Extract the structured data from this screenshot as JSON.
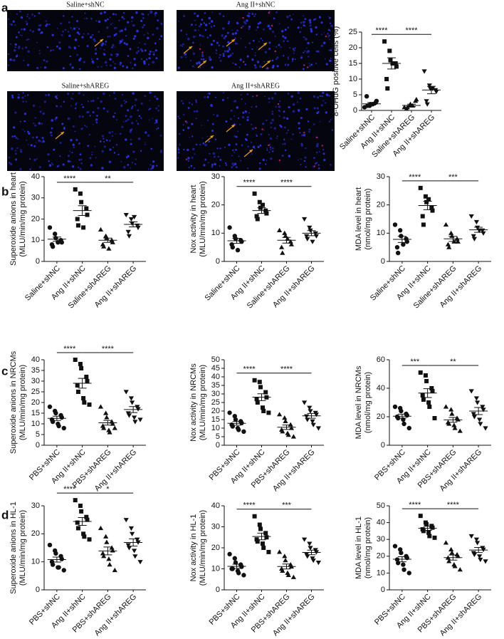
{
  "panel_labels": [
    "a",
    "b",
    "c",
    "d"
  ],
  "images": [
    {
      "label": "Saline+shNC"
    },
    {
      "label": "Ang II+shNC"
    },
    {
      "label": "Saline+shAREG"
    },
    {
      "label": "Ang II+shAREG"
    }
  ],
  "chart_data": [
    {
      "type": "dot",
      "ylabel": [
        "8-OHdG positive cells (%)"
      ],
      "categories": [
        "Saline+shNC",
        "Ang II+shNC",
        "Saline+shAREG",
        "Ang II+shAREG"
      ],
      "ylim": [
        0,
        25
      ],
      "yticks": [
        0,
        5,
        10,
        15,
        20,
        25
      ],
      "groups": [
        {
          "marker": "circle",
          "points": [
            1,
            1.5,
            2,
            2.5,
            3,
            4.5,
            1.5,
            2
          ],
          "mean": 2.1,
          "sem": 0.4
        },
        {
          "marker": "square",
          "points": [
            22,
            19,
            16,
            15,
            14,
            10,
            7,
            15
          ],
          "mean": 15,
          "sem": 1.8
        },
        {
          "marker": "triangle",
          "points": [
            1,
            1.5,
            2,
            3,
            3.5,
            0.5,
            1,
            1.5
          ],
          "mean": 1.6,
          "sem": 0.4
        },
        {
          "marker": "triangle-down",
          "points": [
            12.5,
            8,
            7,
            6.5,
            6,
            3,
            2,
            7
          ],
          "mean": 6.5,
          "sem": 1.2
        }
      ],
      "significance": [
        {
          "from": 0,
          "to": 1,
          "label": "****"
        },
        {
          "from": 1,
          "to": 3,
          "label": "****"
        }
      ]
    },
    {
      "type": "dot",
      "ylabel": [
        "Superoxide anions in heart",
        "(MLU/min/mg protein)"
      ],
      "categories": [
        "Saline+shNC",
        "Ang II+shNC",
        "Saline+shAREG",
        "Ang II+shAREG"
      ],
      "ylim": [
        0,
        40
      ],
      "yticks": [
        0,
        10,
        20,
        30,
        40
      ],
      "groups": [
        {
          "marker": "circle",
          "points": [
            16,
            13,
            11,
            10,
            9,
            8,
            7,
            9
          ],
          "mean": 10.5,
          "sem": 1
        },
        {
          "marker": "square",
          "points": [
            34,
            32,
            28,
            25,
            22,
            20,
            17,
            16
          ],
          "mean": 24,
          "sem": 2.3
        },
        {
          "marker": "triangle",
          "points": [
            15,
            12,
            11,
            10,
            9,
            8,
            7,
            6
          ],
          "mean": 10,
          "sem": 1
        },
        {
          "marker": "triangle-down",
          "points": [
            22,
            20,
            18,
            17,
            16,
            14,
            12,
            21
          ],
          "mean": 17.5,
          "sem": 1.2
        }
      ],
      "significance": [
        {
          "from": 0,
          "to": 1,
          "label": "****"
        },
        {
          "from": 1,
          "to": 3,
          "label": "**"
        }
      ]
    },
    {
      "type": "dot",
      "ylabel": [
        "Nox activity in heart",
        "(MLU/min/mg protein)"
      ],
      "categories": [
        "Saline+shNC",
        "Ang II+shNC",
        "Saline+shAREG",
        "Ang II+shAREG"
      ],
      "ylim": [
        0,
        30
      ],
      "yticks": [
        0,
        10,
        20,
        30
      ],
      "groups": [
        {
          "marker": "circle",
          "points": [
            12,
            9,
            8,
            7.5,
            7,
            6,
            5,
            4
          ],
          "mean": 7.3,
          "sem": 0.9
        },
        {
          "marker": "square",
          "points": [
            24,
            21,
            19,
            18,
            17,
            16,
            15,
            20
          ],
          "mean": 18,
          "sem": 1
        },
        {
          "marker": "triangle",
          "points": [
            11,
            10,
            9,
            7,
            6,
            5,
            3,
            8
          ],
          "mean": 7.5,
          "sem": 1
        },
        {
          "marker": "triangle-down",
          "points": [
            15,
            12,
            11,
            10,
            9,
            9,
            8,
            7
          ],
          "mean": 10,
          "sem": 0.9
        }
      ],
      "significance": [
        {
          "from": 0,
          "to": 1,
          "label": "****"
        },
        {
          "from": 1,
          "to": 3,
          "label": "****"
        }
      ]
    },
    {
      "type": "dot",
      "ylabel": [
        "MDA level in heart",
        "(nmol/mg protein)"
      ],
      "categories": [
        "Saline+shNC",
        "Ang II+shNC",
        "Saline+shAREG",
        "Ang II+shAREG"
      ],
      "ylim": [
        0,
        30
      ],
      "yticks": [
        0,
        10,
        20,
        30
      ],
      "groups": [
        {
          "marker": "circle",
          "points": [
            13,
            11,
            9,
            8,
            7,
            5,
            3,
            6
          ],
          "mean": 7.8,
          "sem": 1.1
        },
        {
          "marker": "square",
          "points": [
            26,
            23,
            21,
            19,
            18,
            16,
            13,
            22
          ],
          "mean": 19.8,
          "sem": 1.5
        },
        {
          "marker": "triangle",
          "points": [
            13,
            10,
            9,
            8,
            7,
            6,
            5,
            7
          ],
          "mean": 8,
          "sem": 0.9
        },
        {
          "marker": "triangle-down",
          "points": [
            16,
            14,
            12,
            11,
            10,
            9,
            8,
            11
          ],
          "mean": 11.2,
          "sem": 0.9
        }
      ],
      "significance": [
        {
          "from": 0,
          "to": 1,
          "label": "****"
        },
        {
          "from": 1,
          "to": 3,
          "label": "***"
        }
      ]
    },
    {
      "type": "dot",
      "ylabel": [
        "Superoxide anions in NRCMs",
        "(MLU/min/mg protein)"
      ],
      "categories": [
        "PBS+shNC",
        "Ang II+shNC",
        "PBS+shAREG",
        "Ang II+shAREG"
      ],
      "ylim": [
        0,
        40
      ],
      "yticks": [
        0,
        5,
        10,
        15,
        20,
        25,
        30,
        35,
        40
      ],
      "groups": [
        {
          "marker": "circle",
          "points": [
            18,
            16,
            15,
            14,
            13,
            12,
            11,
            10,
            9,
            8
          ],
          "mean": 12.6,
          "sem": 1
        },
        {
          "marker": "square",
          "points": [
            40,
            38,
            36,
            32,
            30,
            28,
            25,
            22,
            20,
            19
          ],
          "mean": 29,
          "sem": 2.3
        },
        {
          "marker": "triangle",
          "points": [
            18,
            15,
            13,
            11,
            10,
            9,
            8,
            7,
            6,
            8
          ],
          "mean": 10.5,
          "sem": 1.1
        },
        {
          "marker": "triangle-down",
          "points": [
            25,
            22,
            20,
            18,
            17,
            15,
            14,
            13,
            11,
            12
          ],
          "mean": 16.7,
          "sem": 1.4
        }
      ],
      "significance": [
        {
          "from": 0,
          "to": 1,
          "label": "****"
        },
        {
          "from": 1,
          "to": 3,
          "label": "****"
        }
      ]
    },
    {
      "type": "dot",
      "ylabel": [
        "Nox activity in NRCMs",
        "(MLU/min/mg protein)"
      ],
      "categories": [
        "PBS+shNC",
        "Ang II+shNC",
        "PBS+shAREG",
        "Ang II+shAREG"
      ],
      "ylim": [
        0,
        50
      ],
      "yticks": [
        0,
        5,
        10,
        15,
        20,
        25,
        30,
        35,
        40,
        45,
        50
      ],
      "groups": [
        {
          "marker": "circle",
          "points": [
            19,
            17,
            15,
            14,
            13,
            12,
            11,
            10,
            9,
            8
          ],
          "mean": 12.8,
          "sem": 1.1
        },
        {
          "marker": "square",
          "points": [
            38,
            37,
            34,
            31,
            28,
            27,
            25,
            22,
            20,
            19
          ],
          "mean": 28.1,
          "sem": 2
        },
        {
          "marker": "triangle",
          "points": [
            18,
            16,
            14,
            12,
            10,
            9,
            8,
            7,
            6,
            5
          ],
          "mean": 10.5,
          "sem": 1.3
        },
        {
          "marker": "triangle-down",
          "points": [
            25,
            22,
            20,
            19,
            18,
            17,
            15,
            14,
            12,
            10
          ],
          "mean": 17.2,
          "sem": 1.4
        }
      ],
      "significance": [
        {
          "from": 0,
          "to": 1,
          "label": "****"
        },
        {
          "from": 1,
          "to": 3,
          "label": "****"
        }
      ]
    },
    {
      "type": "dot",
      "ylabel": [
        "MDA level in NRCMs",
        "(nmol/mg protein)"
      ],
      "categories": [
        "PBS+shNC",
        "Ang II+shNC",
        "PBS+shAREG",
        "Ang II+shAREG"
      ],
      "ylim": [
        0,
        60
      ],
      "yticks": [
        0,
        20,
        40,
        60
      ],
      "groups": [
        {
          "marker": "circle",
          "points": [
            27,
            26,
            24,
            22,
            21,
            20,
            19,
            18,
            15,
            12
          ],
          "mean": 20.4,
          "sem": 1.4
        },
        {
          "marker": "square",
          "points": [
            51,
            49,
            45,
            40,
            38,
            35,
            32,
            30,
            27,
            19
          ],
          "mean": 36.6,
          "sem": 3.1
        },
        {
          "marker": "triangle",
          "points": [
            27,
            25,
            22,
            19,
            18,
            16,
            15,
            14,
            12,
            10
          ],
          "mean": 17.8,
          "sem": 1.7
        },
        {
          "marker": "triangle-down",
          "points": [
            38,
            33,
            30,
            27,
            25,
            22,
            20,
            18,
            15,
            12
          ],
          "mean": 24,
          "sem": 2.5
        }
      ],
      "significance": [
        {
          "from": 0,
          "to": 1,
          "label": "***"
        },
        {
          "from": 1,
          "to": 3,
          "label": "**"
        }
      ]
    },
    {
      "type": "dot",
      "ylabel": [
        "Superoxide anions in HL-1",
        "(MLU/min/mg protein)"
      ],
      "categories": [
        "PBS+shNC",
        "Ang II+shNC",
        "PBS+shAREG",
        "Ang II+shAREG"
      ],
      "ylim": [
        0,
        30
      ],
      "yticks": [
        0,
        10,
        20,
        30
      ],
      "groups": [
        {
          "marker": "circle",
          "points": [
            16,
            14,
            13,
            12,
            11,
            10,
            9,
            8,
            8,
            7
          ],
          "mean": 10.8,
          "sem": 0.9
        },
        {
          "marker": "square",
          "points": [
            32,
            30,
            28,
            26,
            25,
            24,
            22,
            20,
            19,
            18
          ],
          "mean": 24.4,
          "sem": 1.4
        },
        {
          "marker": "triangle",
          "points": [
            22,
            19,
            17,
            15,
            14,
            13,
            12,
            11,
            9,
            7
          ],
          "mean": 13.9,
          "sem": 1.4
        },
        {
          "marker": "triangle-down",
          "points": [
            25,
            22,
            20,
            18,
            17,
            16,
            15,
            14,
            12,
            10
          ],
          "mean": 16.9,
          "sem": 1.3
        }
      ],
      "significance": [
        {
          "from": 0,
          "to": 1,
          "label": "****"
        },
        {
          "from": 1,
          "to": 3,
          "label": "*"
        }
      ]
    },
    {
      "type": "dot",
      "ylabel": [
        "Nox activity in HL-1",
        "(MLU/min/mg protein)"
      ],
      "categories": [
        "PBS+shNC",
        "Ang II+shNC",
        "PBS+shAREG",
        "Ang II+shAREG"
      ],
      "ylim": [
        0,
        40
      ],
      "yticks": [
        0,
        10,
        20,
        30,
        40
      ],
      "groups": [
        {
          "marker": "circle",
          "points": [
            17,
            15,
            13,
            12,
            11,
            10,
            10,
            9,
            8,
            7
          ],
          "mean": 11.2,
          "sem": 1
        },
        {
          "marker": "square",
          "points": [
            35,
            31,
            29,
            27,
            25,
            24,
            23,
            22,
            20,
            18
          ],
          "mean": 25.4,
          "sem": 1.6
        },
        {
          "marker": "triangle",
          "points": [
            18,
            16,
            14,
            12,
            11,
            10,
            9,
            8,
            7,
            6
          ],
          "mean": 11.1,
          "sem": 1.2
        },
        {
          "marker": "triangle-down",
          "points": [
            24,
            22,
            20,
            19,
            18,
            17,
            16,
            15,
            14,
            13
          ],
          "mean": 17.8,
          "sem": 1.1
        }
      ],
      "significance": [
        {
          "from": 0,
          "to": 1,
          "label": "****"
        },
        {
          "from": 1,
          "to": 3,
          "label": "***"
        }
      ]
    },
    {
      "type": "dot",
      "ylabel": [
        "MDA level in HL-1",
        "(nmol/mg protein)"
      ],
      "categories": [
        "PBS+shNC",
        "Ang II+shNC",
        "PBS+shAREG",
        "Ang II+shAREG"
      ],
      "ylim": [
        0,
        50
      ],
      "yticks": [
        0,
        10,
        20,
        30,
        40,
        50
      ],
      "groups": [
        {
          "marker": "circle",
          "points": [
            26,
            24,
            22,
            20,
            19,
            18,
            16,
            15,
            12,
            10
          ],
          "mean": 18.2,
          "sem": 1.5
        },
        {
          "marker": "square",
          "points": [
            44,
            40,
            39,
            38,
            37,
            36,
            35,
            34,
            32,
            31
          ],
          "mean": 36.6,
          "sem": 1.2
        },
        {
          "marker": "triangle",
          "points": [
            28,
            24,
            22,
            21,
            20,
            19,
            17,
            15,
            14,
            12
          ],
          "mean": 19.2,
          "sem": 1.5
        },
        {
          "marker": "triangle-down",
          "points": [
            32,
            30,
            28,
            25,
            24,
            22,
            21,
            20,
            18,
            17
          ],
          "mean": 23.7,
          "sem": 1.5
        }
      ],
      "significance": [
        {
          "from": 0,
          "to": 1,
          "label": "****"
        },
        {
          "from": 1,
          "to": 3,
          "label": "****"
        }
      ]
    }
  ]
}
